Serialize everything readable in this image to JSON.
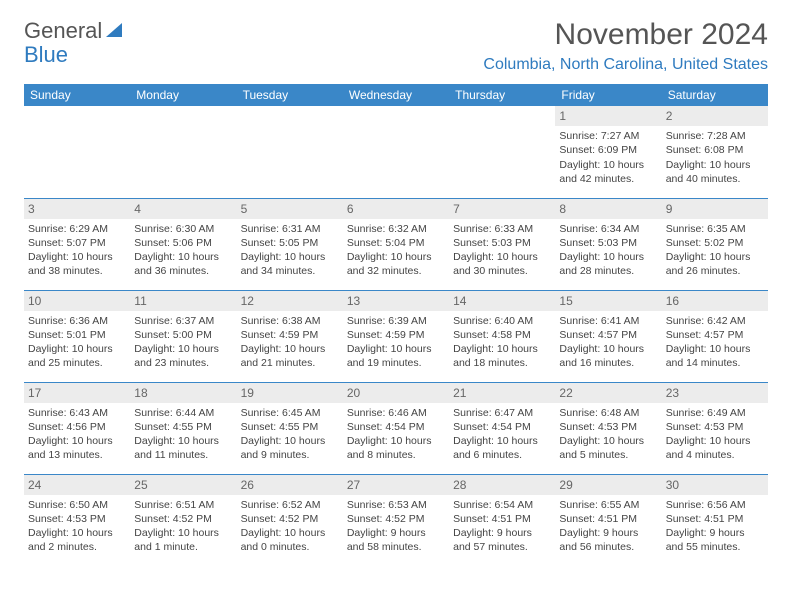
{
  "logo": {
    "text1": "General",
    "text2": "Blue",
    "icon_color": "#2f7bbf"
  },
  "title": "November 2024",
  "location": "Columbia, North Carolina, United States",
  "colors": {
    "header_bg": "#3a87c8",
    "accent": "#2f7bbf",
    "daynum_bg": "#ececec"
  },
  "weekdays": [
    "Sunday",
    "Monday",
    "Tuesday",
    "Wednesday",
    "Thursday",
    "Friday",
    "Saturday"
  ],
  "weeks": [
    [
      null,
      null,
      null,
      null,
      null,
      {
        "n": "1",
        "sr": "Sunrise: 7:27 AM",
        "ss": "Sunset: 6:09 PM",
        "d1": "Daylight: 10 hours",
        "d2": "and 42 minutes."
      },
      {
        "n": "2",
        "sr": "Sunrise: 7:28 AM",
        "ss": "Sunset: 6:08 PM",
        "d1": "Daylight: 10 hours",
        "d2": "and 40 minutes."
      }
    ],
    [
      {
        "n": "3",
        "sr": "Sunrise: 6:29 AM",
        "ss": "Sunset: 5:07 PM",
        "d1": "Daylight: 10 hours",
        "d2": "and 38 minutes."
      },
      {
        "n": "4",
        "sr": "Sunrise: 6:30 AM",
        "ss": "Sunset: 5:06 PM",
        "d1": "Daylight: 10 hours",
        "d2": "and 36 minutes."
      },
      {
        "n": "5",
        "sr": "Sunrise: 6:31 AM",
        "ss": "Sunset: 5:05 PM",
        "d1": "Daylight: 10 hours",
        "d2": "and 34 minutes."
      },
      {
        "n": "6",
        "sr": "Sunrise: 6:32 AM",
        "ss": "Sunset: 5:04 PM",
        "d1": "Daylight: 10 hours",
        "d2": "and 32 minutes."
      },
      {
        "n": "7",
        "sr": "Sunrise: 6:33 AM",
        "ss": "Sunset: 5:03 PM",
        "d1": "Daylight: 10 hours",
        "d2": "and 30 minutes."
      },
      {
        "n": "8",
        "sr": "Sunrise: 6:34 AM",
        "ss": "Sunset: 5:03 PM",
        "d1": "Daylight: 10 hours",
        "d2": "and 28 minutes."
      },
      {
        "n": "9",
        "sr": "Sunrise: 6:35 AM",
        "ss": "Sunset: 5:02 PM",
        "d1": "Daylight: 10 hours",
        "d2": "and 26 minutes."
      }
    ],
    [
      {
        "n": "10",
        "sr": "Sunrise: 6:36 AM",
        "ss": "Sunset: 5:01 PM",
        "d1": "Daylight: 10 hours",
        "d2": "and 25 minutes."
      },
      {
        "n": "11",
        "sr": "Sunrise: 6:37 AM",
        "ss": "Sunset: 5:00 PM",
        "d1": "Daylight: 10 hours",
        "d2": "and 23 minutes."
      },
      {
        "n": "12",
        "sr": "Sunrise: 6:38 AM",
        "ss": "Sunset: 4:59 PM",
        "d1": "Daylight: 10 hours",
        "d2": "and 21 minutes."
      },
      {
        "n": "13",
        "sr": "Sunrise: 6:39 AM",
        "ss": "Sunset: 4:59 PM",
        "d1": "Daylight: 10 hours",
        "d2": "and 19 minutes."
      },
      {
        "n": "14",
        "sr": "Sunrise: 6:40 AM",
        "ss": "Sunset: 4:58 PM",
        "d1": "Daylight: 10 hours",
        "d2": "and 18 minutes."
      },
      {
        "n": "15",
        "sr": "Sunrise: 6:41 AM",
        "ss": "Sunset: 4:57 PM",
        "d1": "Daylight: 10 hours",
        "d2": "and 16 minutes."
      },
      {
        "n": "16",
        "sr": "Sunrise: 6:42 AM",
        "ss": "Sunset: 4:57 PM",
        "d1": "Daylight: 10 hours",
        "d2": "and 14 minutes."
      }
    ],
    [
      {
        "n": "17",
        "sr": "Sunrise: 6:43 AM",
        "ss": "Sunset: 4:56 PM",
        "d1": "Daylight: 10 hours",
        "d2": "and 13 minutes."
      },
      {
        "n": "18",
        "sr": "Sunrise: 6:44 AM",
        "ss": "Sunset: 4:55 PM",
        "d1": "Daylight: 10 hours",
        "d2": "and 11 minutes."
      },
      {
        "n": "19",
        "sr": "Sunrise: 6:45 AM",
        "ss": "Sunset: 4:55 PM",
        "d1": "Daylight: 10 hours",
        "d2": "and 9 minutes."
      },
      {
        "n": "20",
        "sr": "Sunrise: 6:46 AM",
        "ss": "Sunset: 4:54 PM",
        "d1": "Daylight: 10 hours",
        "d2": "and 8 minutes."
      },
      {
        "n": "21",
        "sr": "Sunrise: 6:47 AM",
        "ss": "Sunset: 4:54 PM",
        "d1": "Daylight: 10 hours",
        "d2": "and 6 minutes."
      },
      {
        "n": "22",
        "sr": "Sunrise: 6:48 AM",
        "ss": "Sunset: 4:53 PM",
        "d1": "Daylight: 10 hours",
        "d2": "and 5 minutes."
      },
      {
        "n": "23",
        "sr": "Sunrise: 6:49 AM",
        "ss": "Sunset: 4:53 PM",
        "d1": "Daylight: 10 hours",
        "d2": "and 4 minutes."
      }
    ],
    [
      {
        "n": "24",
        "sr": "Sunrise: 6:50 AM",
        "ss": "Sunset: 4:53 PM",
        "d1": "Daylight: 10 hours",
        "d2": "and 2 minutes."
      },
      {
        "n": "25",
        "sr": "Sunrise: 6:51 AM",
        "ss": "Sunset: 4:52 PM",
        "d1": "Daylight: 10 hours",
        "d2": "and 1 minute."
      },
      {
        "n": "26",
        "sr": "Sunrise: 6:52 AM",
        "ss": "Sunset: 4:52 PM",
        "d1": "Daylight: 10 hours",
        "d2": "and 0 minutes."
      },
      {
        "n": "27",
        "sr": "Sunrise: 6:53 AM",
        "ss": "Sunset: 4:52 PM",
        "d1": "Daylight: 9 hours",
        "d2": "and 58 minutes."
      },
      {
        "n": "28",
        "sr": "Sunrise: 6:54 AM",
        "ss": "Sunset: 4:51 PM",
        "d1": "Daylight: 9 hours",
        "d2": "and 57 minutes."
      },
      {
        "n": "29",
        "sr": "Sunrise: 6:55 AM",
        "ss": "Sunset: 4:51 PM",
        "d1": "Daylight: 9 hours",
        "d2": "and 56 minutes."
      },
      {
        "n": "30",
        "sr": "Sunrise: 6:56 AM",
        "ss": "Sunset: 4:51 PM",
        "d1": "Daylight: 9 hours",
        "d2": "and 55 minutes."
      }
    ]
  ]
}
